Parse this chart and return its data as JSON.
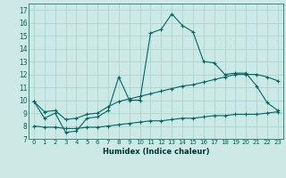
{
  "xlabel": "Humidex (Indice chaleur)",
  "ylabel": "",
  "background_color": "#cce9e5",
  "grid_color": "#aad4ce",
  "line_color": "#006666",
  "xlim": [
    -0.5,
    23.5
  ],
  "ylim": [
    7,
    17.5
  ],
  "yticks": [
    7,
    8,
    9,
    10,
    11,
    12,
    13,
    14,
    15,
    16,
    17
  ],
  "xticks": [
    0,
    1,
    2,
    3,
    4,
    5,
    6,
    7,
    8,
    9,
    10,
    11,
    12,
    13,
    14,
    15,
    16,
    17,
    18,
    19,
    20,
    21,
    22,
    23
  ],
  "xtick_labels": [
    "0",
    "1",
    "2",
    "3",
    "4",
    "5",
    "6",
    "7",
    "8",
    "9",
    "10",
    "11",
    "12",
    "13",
    "14",
    "15",
    "16",
    "17",
    "18",
    "19",
    "20",
    "21",
    "22",
    "23"
  ],
  "line1_x": [
    0,
    1,
    2,
    3,
    4,
    5,
    6,
    7,
    8,
    9,
    10,
    11,
    12,
    13,
    14,
    15,
    16,
    17,
    18,
    19,
    20,
    21,
    22,
    23
  ],
  "line1_y": [
    9.9,
    8.6,
    9.0,
    7.5,
    7.6,
    8.6,
    8.7,
    9.2,
    11.8,
    10.0,
    10.0,
    15.2,
    15.5,
    16.7,
    15.8,
    15.3,
    13.0,
    12.9,
    12.0,
    12.1,
    12.1,
    11.1,
    9.8,
    9.2
  ],
  "line2_x": [
    0,
    1,
    2,
    3,
    4,
    5,
    6,
    7,
    8,
    9,
    10,
    11,
    12,
    13,
    14,
    15,
    16,
    17,
    18,
    19,
    20,
    21,
    22,
    23
  ],
  "line2_y": [
    9.9,
    9.1,
    9.2,
    8.5,
    8.6,
    8.9,
    9.0,
    9.5,
    9.9,
    10.1,
    10.3,
    10.5,
    10.7,
    10.9,
    11.1,
    11.2,
    11.4,
    11.6,
    11.8,
    12.0,
    12.0,
    12.0,
    11.8,
    11.5
  ],
  "line3_x": [
    0,
    1,
    2,
    3,
    4,
    5,
    6,
    7,
    8,
    9,
    10,
    11,
    12,
    13,
    14,
    15,
    16,
    17,
    18,
    19,
    20,
    21,
    22,
    23
  ],
  "line3_y": [
    8.0,
    7.9,
    7.9,
    7.8,
    7.8,
    7.9,
    7.9,
    8.0,
    8.1,
    8.2,
    8.3,
    8.4,
    8.4,
    8.5,
    8.6,
    8.6,
    8.7,
    8.8,
    8.8,
    8.9,
    8.9,
    8.9,
    9.0,
    9.1
  ]
}
